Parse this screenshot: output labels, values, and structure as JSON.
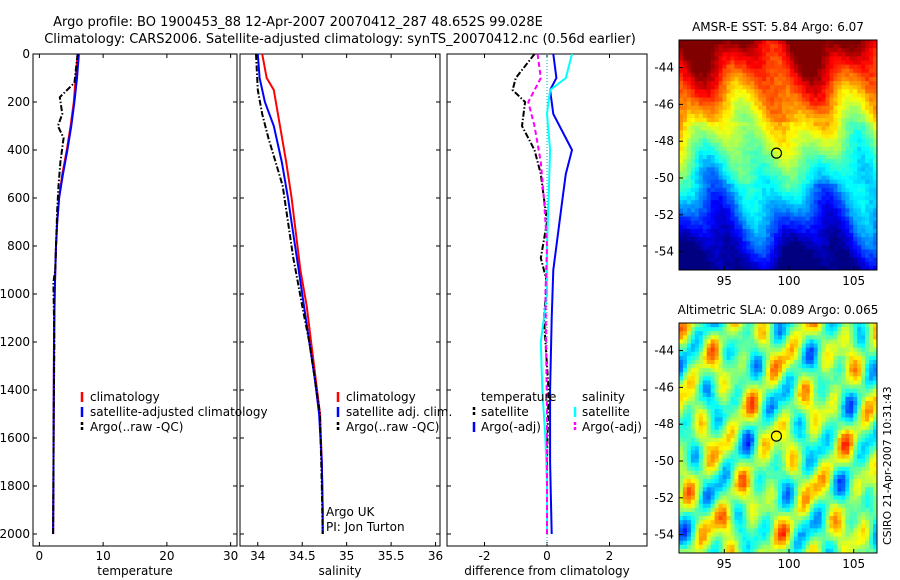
{
  "header": {
    "line1": "Argo profile: BO 1900453_88 12-Apr-2007 20070412_287 48.652S 99.028E",
    "line2": "Climatology: CARS2006. Satellite-adjusted climatology: synTS_20070412.nc (0.56d earlier)"
  },
  "credit": "CSIRO 21-Apr-2007 10:31:43",
  "colors": {
    "climatology": "#ff0000",
    "satellite": "#0000ff",
    "argo": "#000000",
    "salinity_satellite": "#00ffff",
    "salinity_argo": "#ff00ff"
  },
  "chart_data": [
    {
      "type": "line",
      "xlabel": "temperature",
      "ylabel": "",
      "xlim": [
        -1,
        31
      ],
      "ylim": [
        2050,
        0
      ],
      "xticks": [
        "0",
        "10",
        "20",
        "30"
      ],
      "yticks": [
        "0",
        "200",
        "400",
        "600",
        "800",
        "1000",
        "1200",
        "1400",
        "1600",
        "1800",
        "2000"
      ],
      "legend": [
        "climatology",
        "satellite-adjusted climatology",
        "Argo(..raw -QC)"
      ],
      "series": [
        {
          "name": "climatology",
          "style": "solid",
          "color": "#ff0000",
          "x": [
            6.0,
            5.7,
            5.4,
            4.9,
            4.3,
            3.6,
            3.1,
            2.8,
            2.6,
            2.5,
            2.4,
            2.3,
            2.25,
            2.2,
            2.15
          ],
          "y": [
            0,
            100,
            200,
            300,
            400,
            500,
            600,
            700,
            800,
            900,
            1000,
            1200,
            1500,
            1800,
            2000
          ]
        },
        {
          "name": "satellite-adjusted climatology",
          "style": "solid",
          "color": "#0000ff",
          "x": [
            6.2,
            5.9,
            5.5,
            5.0,
            4.4,
            3.7,
            3.1,
            2.8,
            2.6,
            2.5,
            2.4,
            2.3,
            2.25,
            2.2,
            2.15
          ],
          "y": [
            0,
            100,
            200,
            300,
            400,
            500,
            600,
            700,
            800,
            900,
            1000,
            1200,
            1500,
            1800,
            2000
          ]
        },
        {
          "name": "Argo(..raw -QC)",
          "style": "dashdot",
          "color": "#000000",
          "x": [
            6.0,
            5.5,
            3.2,
            3.6,
            2.9,
            3.8,
            3.3,
            3.0,
            2.8,
            2.6,
            2.5,
            2.2,
            2.35,
            2.25,
            2.2,
            2.15
          ],
          "y": [
            0,
            120,
            180,
            250,
            300,
            350,
            450,
            550,
            650,
            800,
            900,
            950,
            1200,
            1500,
            1800,
            2000
          ]
        }
      ]
    },
    {
      "type": "line",
      "xlabel": "salinity",
      "ylabel": "",
      "xlim": [
        33.8,
        36.05
      ],
      "ylim": [
        2050,
        0
      ],
      "xticks": [
        "34",
        "34.5",
        "35",
        "35.5",
        "36"
      ],
      "legend": [
        "climatology",
        "satellite adj. clim.",
        "Argo(..raw -QC)"
      ],
      "series": [
        {
          "name": "climatology",
          "style": "solid",
          "color": "#ff0000",
          "x": [
            34.05,
            34.1,
            34.18,
            34.25,
            34.32,
            34.38,
            34.43,
            34.48,
            34.55,
            34.6,
            34.65,
            34.7,
            34.72,
            34.73,
            34.73
          ],
          "y": [
            0,
            100,
            150,
            300,
            450,
            600,
            750,
            900,
            1050,
            1200,
            1350,
            1500,
            1700,
            1900,
            2000
          ]
        },
        {
          "name": "satellite adj. clim.",
          "style": "solid",
          "color": "#0000ff",
          "x": [
            34.0,
            34.02,
            34.08,
            34.18,
            34.27,
            34.34,
            34.4,
            34.46,
            34.52,
            34.58,
            34.64,
            34.69,
            34.72,
            34.73,
            34.73
          ],
          "y": [
            0,
            100,
            200,
            300,
            450,
            600,
            750,
            900,
            1050,
            1200,
            1350,
            1500,
            1700,
            1900,
            2000
          ]
        },
        {
          "name": "Argo(..raw -QC)",
          "style": "dashdot",
          "color": "#000000",
          "x": [
            33.98,
            34.0,
            34.05,
            34.12,
            34.2,
            34.28,
            34.34,
            34.4,
            34.45,
            34.5,
            34.58,
            34.64,
            34.7,
            34.72,
            34.73
          ],
          "y": [
            0,
            150,
            250,
            350,
            450,
            550,
            700,
            850,
            950,
            1050,
            1200,
            1350,
            1500,
            1800,
            2000
          ]
        }
      ],
      "annotation": [
        "Argo UK",
        "PI: Jon Turton"
      ]
    },
    {
      "type": "line",
      "xlabel": "difference from climatology",
      "ylabel": "",
      "xlim": [
        -3.2,
        3.2
      ],
      "ylim": [
        2050,
        0
      ],
      "xticks": [
        "-2",
        "0",
        "2"
      ],
      "legend_left": {
        "heading": "temperature",
        "items": [
          "satellite",
          "Argo(-adj)"
        ]
      },
      "legend_right": {
        "heading": "salinity",
        "items": [
          "satellite",
          "Argo(-adj)"
        ]
      },
      "series": [
        {
          "name": "temperature satellite",
          "style": "solid",
          "color": "#0000ff",
          "x": [
            0.2,
            0.3,
            0.1,
            0.2,
            0.6,
            0.8,
            0.6,
            0.5,
            0.4,
            0.3,
            0.2,
            0.15,
            0.1,
            0.1,
            0.15
          ],
          "y": [
            0,
            100,
            150,
            250,
            350,
            400,
            500,
            600,
            700,
            800,
            900,
            1100,
            1400,
            1700,
            2000
          ]
        },
        {
          "name": "temperature Argo(-adj)",
          "style": "dashdot",
          "color": "#000000",
          "x": [
            -0.4,
            -1.0,
            -1.1,
            -0.7,
            -0.8,
            -0.4,
            -0.2,
            -0.1,
            0.0,
            -0.2,
            0.0,
            -0.1,
            0.05,
            0.0,
            0.0
          ],
          "y": [
            0,
            100,
            150,
            200,
            300,
            400,
            500,
            600,
            700,
            850,
            950,
            1100,
            1400,
            1700,
            2000
          ]
        },
        {
          "name": "salinity satellite",
          "style": "solid",
          "color": "#00ffff",
          "x": [
            0.8,
            0.6,
            0.1,
            0.0,
            0.1,
            0.05,
            0.0,
            0.0,
            -0.1,
            -0.2,
            -0.15,
            -0.05,
            0.0,
            0.0
          ],
          "y": [
            0,
            100,
            150,
            250,
            400,
            600,
            800,
            1000,
            1100,
            1200,
            1400,
            1600,
            1800,
            2000
          ]
        },
        {
          "name": "salinity Argo(-adj)",
          "style": "dashed",
          "color": "#ff00ff",
          "x": [
            -0.3,
            -0.2,
            -0.6,
            -0.4,
            -0.2,
            -0.1,
            0.0,
            -0.05,
            0.0,
            0.0
          ],
          "y": [
            0,
            100,
            200,
            300,
            450,
            600,
            800,
            1000,
            1500,
            2000
          ]
        }
      ]
    },
    {
      "type": "heatmap",
      "title": "AMSR-E SST: 5.84 Argo: 6.07",
      "xticks": [
        "95",
        "100",
        "105"
      ],
      "yticks": [
        "-44",
        "-46",
        "-48",
        "-50",
        "-52",
        "-54"
      ],
      "xlim": [
        91.5,
        106.8
      ],
      "ylim": [
        -55,
        -42.5
      ],
      "marker": {
        "lon": 99.03,
        "lat": -48.65
      }
    },
    {
      "type": "heatmap",
      "title": "Altimetric SLA: 0.089 Argo: 0.065",
      "xticks": [
        "95",
        "100",
        "105"
      ],
      "yticks": [
        "-44",
        "-46",
        "-48",
        "-50",
        "-52",
        "-54"
      ],
      "xlim": [
        91.5,
        106.8
      ],
      "ylim": [
        -55,
        -42.5
      ],
      "marker": {
        "lon": 99.03,
        "lat": -48.65
      }
    }
  ]
}
